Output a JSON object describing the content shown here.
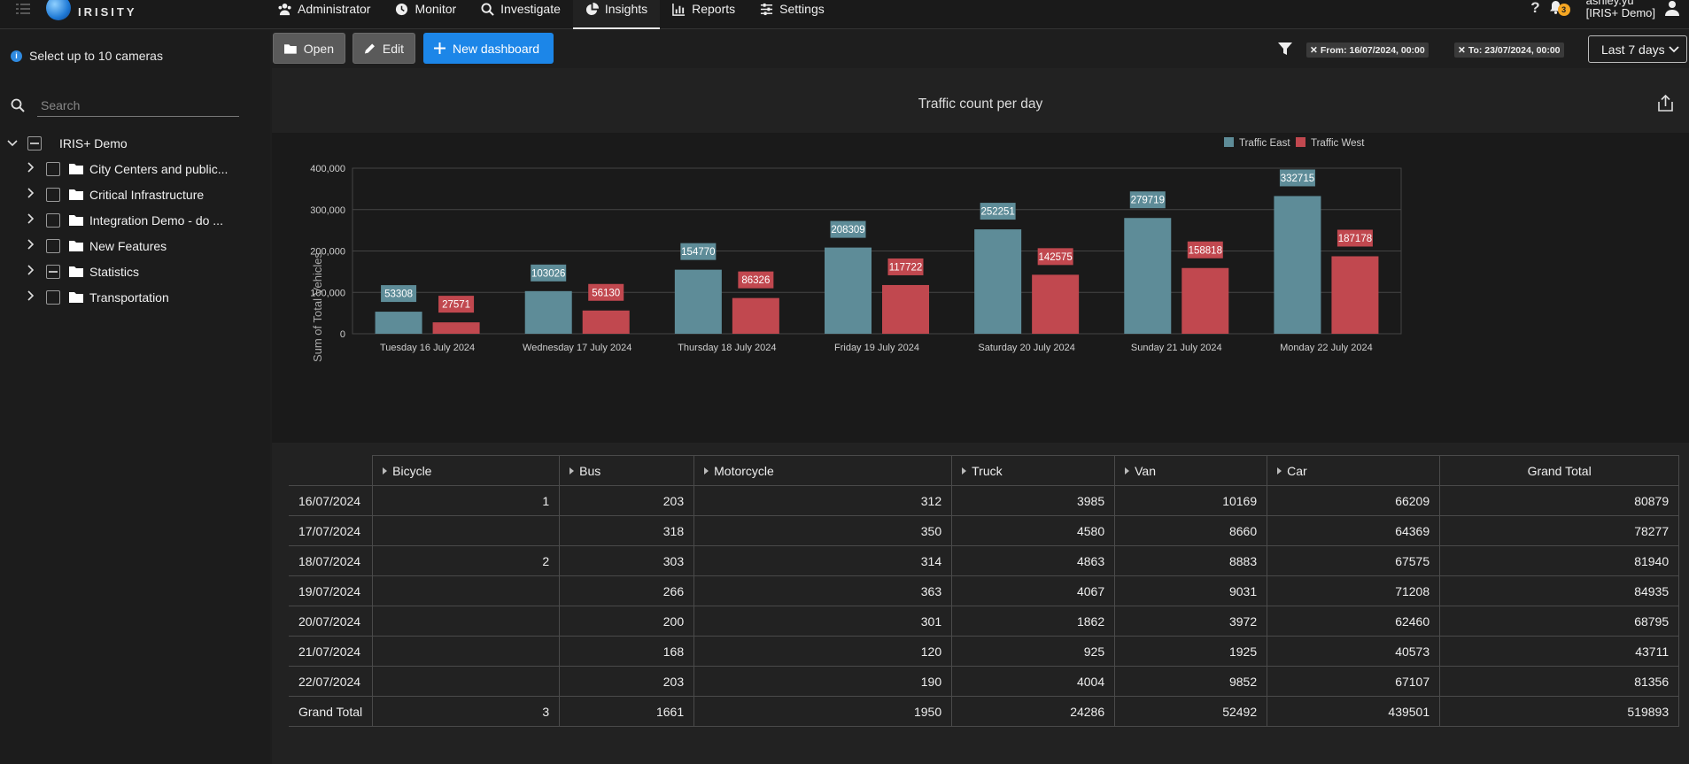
{
  "app": {
    "logo_text": "IRISITY"
  },
  "nav": [
    {
      "label": "Administrator",
      "icon": "users-icon"
    },
    {
      "label": "Monitor",
      "icon": "clock-icon"
    },
    {
      "label": "Investigate",
      "icon": "search-icon"
    },
    {
      "label": "Insights",
      "icon": "pie-chart-icon",
      "active": true
    },
    {
      "label": "Reports",
      "icon": "bar-report-icon"
    },
    {
      "label": "Settings",
      "icon": "sliders-icon"
    }
  ],
  "header": {
    "help": "?",
    "notifications_count": "3",
    "user_name": "ashley.yu",
    "user_org": "[IRIS+ Demo]"
  },
  "sidebar": {
    "hint": "Select up to 10 cameras",
    "search_placeholder": "Search",
    "root": "IRIS+ Demo",
    "folders": [
      "City Centers and public...",
      "Critical Infrastructure",
      "Integration Demo - do ...",
      "New Features",
      "Statistics",
      "Transportation"
    ]
  },
  "toolbar": {
    "open_label": "Open",
    "edit_label": "Edit",
    "new_label": "New dashboard",
    "from_chip": "From: 16/07/2024, 00:00",
    "to_chip": "To: 23/07/2024, 00:00",
    "range": "Last 7 days"
  },
  "chart_data": {
    "type": "bar",
    "title": "Traffic count per day",
    "xlabel": "",
    "ylabel": "Sum of Total Vehicles",
    "ylim": [
      0,
      400000
    ],
    "yticks": [
      "0",
      "100,000",
      "200,000",
      "300,000",
      "400,000"
    ],
    "categories": [
      "Tuesday 16 July 2024",
      "Wednesday 17 July 2024",
      "Thursday 18 July 2024",
      "Friday 19 July 2024",
      "Saturday 20 July 2024",
      "Sunday 21 July 2024",
      "Monday 22 July 2024"
    ],
    "series": [
      {
        "name": "Traffic East",
        "color": "#5e8c98",
        "values": [
          53308,
          103026,
          154770,
          208309,
          252251,
          279719,
          332715
        ]
      },
      {
        "name": "Traffic West",
        "color": "#c1484f",
        "values": [
          27571,
          56130,
          86326,
          117722,
          142575,
          158818,
          187178
        ]
      }
    ],
    "legend": "top-right",
    "grid": true
  },
  "table": {
    "columns": [
      "Bicycle",
      "Bus",
      "Motorcycle",
      "Truck",
      "Van",
      "Car",
      "Grand Total"
    ],
    "rows": [
      {
        "date": "16/07/2024",
        "values": [
          "1",
          "203",
          "312",
          "3985",
          "10169",
          "66209",
          "80879"
        ]
      },
      {
        "date": "17/07/2024",
        "values": [
          "",
          "318",
          "350",
          "4580",
          "8660",
          "64369",
          "78277"
        ]
      },
      {
        "date": "18/07/2024",
        "values": [
          "2",
          "303",
          "314",
          "4863",
          "8883",
          "67575",
          "81940"
        ]
      },
      {
        "date": "19/07/2024",
        "values": [
          "",
          "266",
          "363",
          "4067",
          "9031",
          "71208",
          "84935"
        ]
      },
      {
        "date": "20/07/2024",
        "values": [
          "",
          "200",
          "301",
          "1862",
          "3972",
          "62460",
          "68795"
        ]
      },
      {
        "date": "21/07/2024",
        "values": [
          "",
          "168",
          "120",
          "925",
          "1925",
          "40573",
          "43711"
        ]
      },
      {
        "date": "22/07/2024",
        "values": [
          "",
          "203",
          "190",
          "4004",
          "9852",
          "67107",
          "81356"
        ]
      },
      {
        "date": "Grand Total",
        "values": [
          "3",
          "1661",
          "1950",
          "24286",
          "52492",
          "439501",
          "519893"
        ]
      }
    ]
  }
}
